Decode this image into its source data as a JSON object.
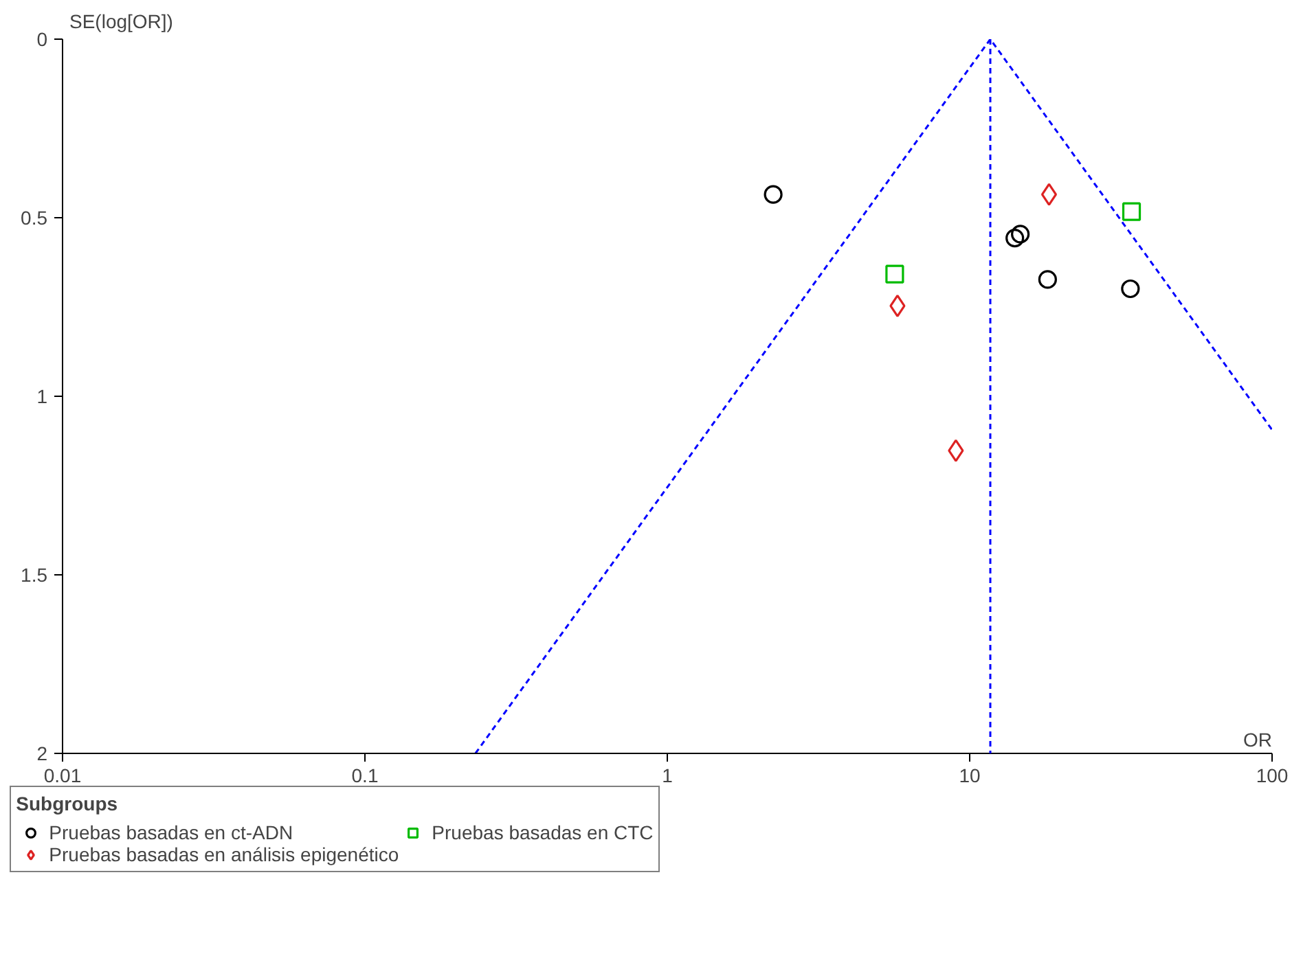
{
  "chart_data": {
    "type": "scatter",
    "xlabel": "OR",
    "ylabel": "SE(log[OR])",
    "legend_title": "Subgroups",
    "log": "x",
    "xlim": [
      0.01,
      100
    ],
    "xticks": [
      0.01,
      0.1,
      1,
      10,
      100
    ],
    "ylim": [
      2,
      0
    ],
    "yticks": [
      0,
      0.5,
      1,
      1.5,
      2
    ],
    "grid": false,
    "legend": "bottom",
    "ref_lines": [
      {
        "axis": "x",
        "value": 11.7,
        "color": "#0000ff",
        "line_style": "dashed"
      }
    ],
    "series": [
      {
        "name": "Pruebas basadas en ct-ADN",
        "color": "#000000",
        "marker": "circle",
        "x": [
          2.24,
          14.1,
          14.7,
          18.1,
          34.0
        ],
        "values": [
          0.435,
          0.557,
          0.546,
          0.673,
          0.699
        ]
      },
      {
        "name": "Pruebas basadas en CTC",
        "color": "#00bb00",
        "marker": "square",
        "x": [
          5.65,
          34.3
        ],
        "values": [
          0.658,
          0.483
        ]
      },
      {
        "name": "Pruebas basadas en análisis epigenético",
        "color": "#dd2222",
        "marker": "diamond",
        "x": [
          18.3,
          5.77,
          9.0
        ],
        "values": [
          0.435,
          0.747,
          1.152
        ]
      },
      {
        "type": "line",
        "color": "#0000ff",
        "line_style": "dashed",
        "x": [
          0.232,
          11.7,
          100
        ],
        "values": [
          2,
          0,
          1.094
        ]
      }
    ]
  }
}
